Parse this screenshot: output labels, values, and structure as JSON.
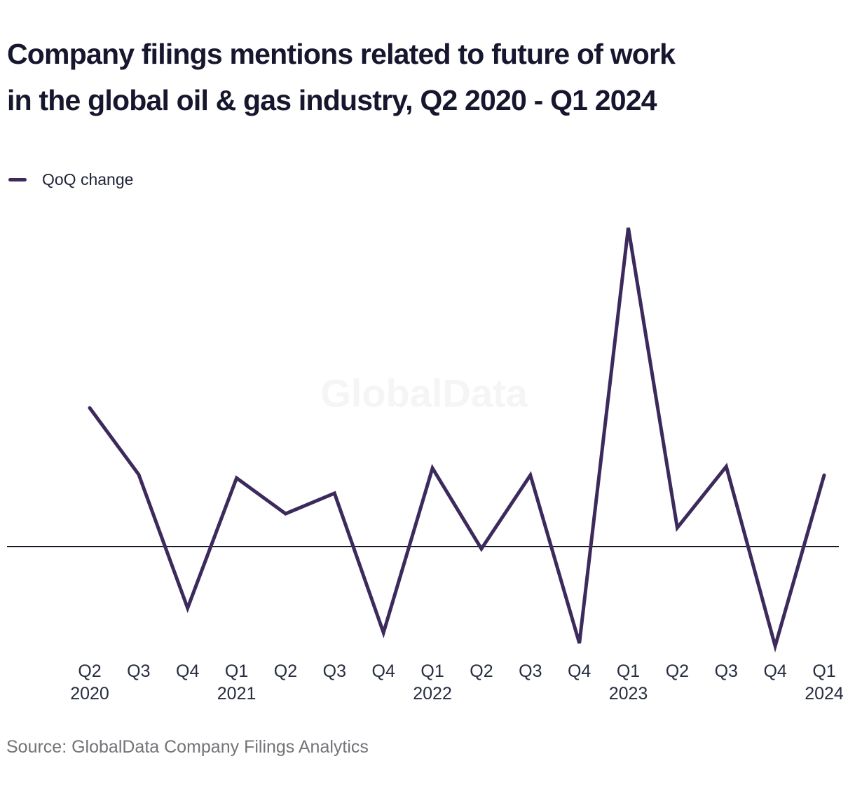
{
  "header": {
    "title_line1": "Company filings mentions related to future of work",
    "title_line2": "in the global oil & gas industry, Q2 2020 - Q1 2024"
  },
  "legend": {
    "label": "QoQ change",
    "swatch_color": "#3c2a5c",
    "position": "top-left"
  },
  "watermark": "GlobalData",
  "source": "Source: GlobalData Company Filings Analytics",
  "colors": {
    "background": "#ffffff",
    "line": "#3c2a5c",
    "zero_line": "#161b2c",
    "title_text": "#16162e",
    "tick_label": "#272d40",
    "source_text": "#737378",
    "watermark": "#f5f5f5"
  },
  "chart_data": {
    "type": "line",
    "title": "Company filings mentions related to future of work in the global oil & gas industry, Q2 2020 - Q1 2024",
    "categories": [
      {
        "quarter": "Q2",
        "year": "2020"
      },
      {
        "quarter": "Q3",
        "year": ""
      },
      {
        "quarter": "Q4",
        "year": ""
      },
      {
        "quarter": "Q1",
        "year": "2021"
      },
      {
        "quarter": "Q2",
        "year": ""
      },
      {
        "quarter": "Q3",
        "year": ""
      },
      {
        "quarter": "Q4",
        "year": ""
      },
      {
        "quarter": "Q1",
        "year": "2022"
      },
      {
        "quarter": "Q2",
        "year": ""
      },
      {
        "quarter": "Q3",
        "year": ""
      },
      {
        "quarter": "Q4",
        "year": ""
      },
      {
        "quarter": "Q1",
        "year": "2023"
      },
      {
        "quarter": "Q2",
        "year": ""
      },
      {
        "quarter": "Q3",
        "year": ""
      },
      {
        "quarter": "Q4",
        "year": ""
      },
      {
        "quarter": "Q1",
        "year": "2024"
      }
    ],
    "series": [
      {
        "name": "QoQ change",
        "values": [
          43.5,
          22.6,
          -19.3,
          21.5,
          10.3,
          16.7,
          -27.0,
          24.6,
          -0.7,
          22.4,
          -30.3,
          100.0,
          5.9,
          25.1,
          -31.2,
          22.4
        ]
      }
    ],
    "units": "relative scale (y-axis has no value labels; Q1 2023 peak normalized to 100)",
    "baseline": 0,
    "grid": false,
    "y_axis_visible": false,
    "legend_position": "top-left"
  }
}
